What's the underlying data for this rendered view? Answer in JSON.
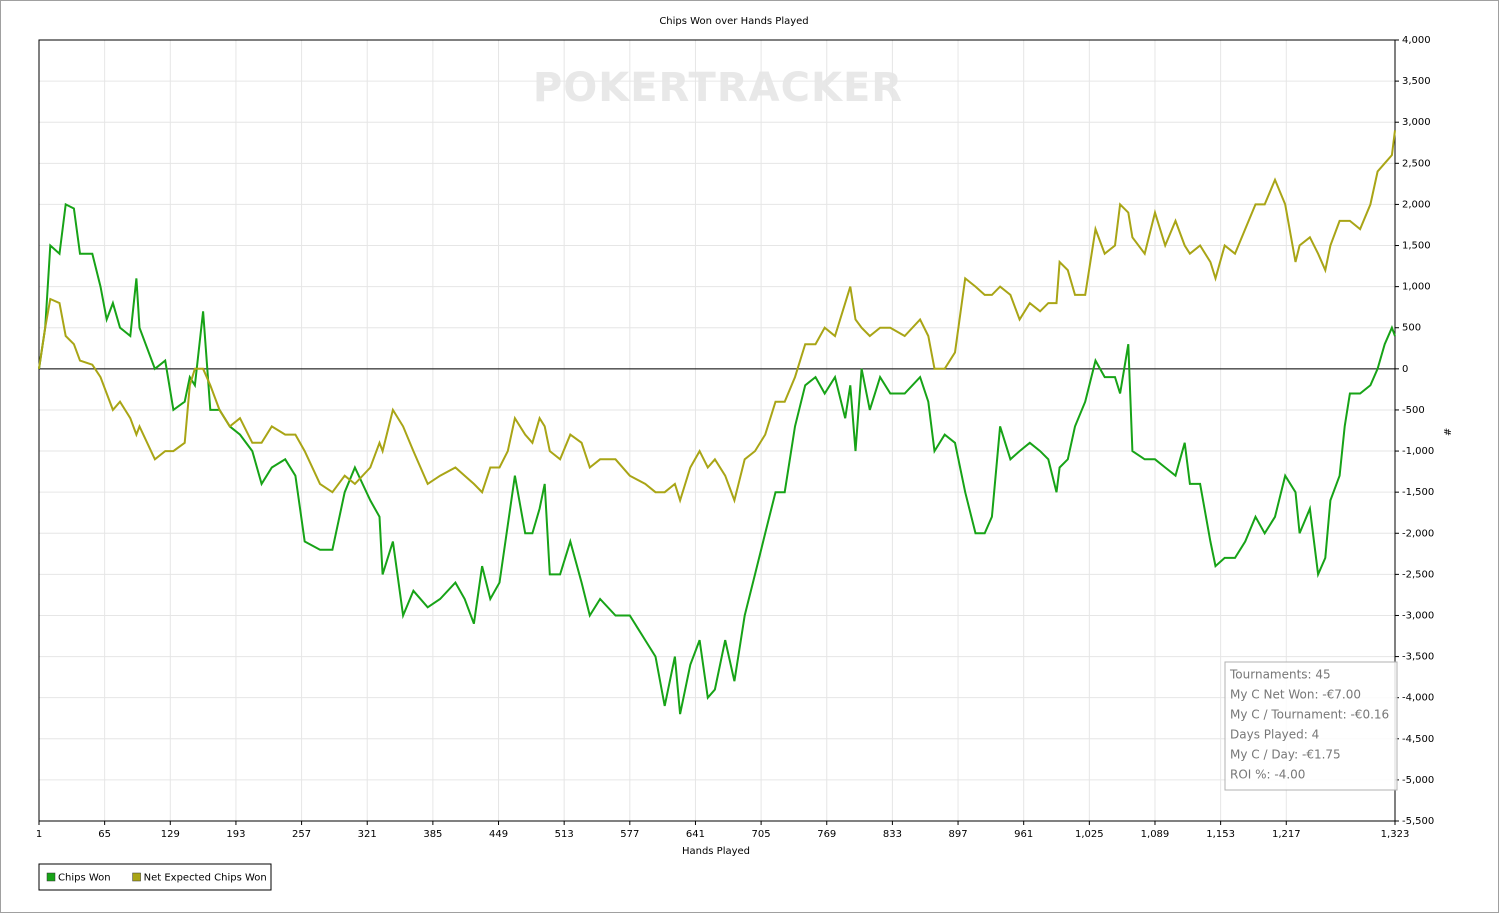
{
  "chart_data": {
    "type": "line",
    "title": "Chips Won over Hands Played",
    "x_label": "Hands Played",
    "y_label": "#",
    "watermark": "POKERTRACKER",
    "x": [
      1,
      7,
      12,
      21,
      27,
      35,
      41,
      53,
      61,
      67,
      73,
      80,
      90,
      96,
      99,
      114,
      124,
      132,
      143,
      148,
      153,
      161,
      168,
      177,
      187,
      197,
      209,
      218,
      228,
      241,
      251,
      260,
      275,
      287,
      299,
      309,
      324,
      333,
      336,
      346,
      356,
      366,
      380,
      392,
      407,
      416,
      425,
      433,
      441,
      450,
      458,
      465,
      475,
      482,
      489,
      494,
      499,
      509,
      519,
      530,
      538,
      548,
      563,
      577,
      592,
      602,
      611,
      621,
      626,
      636,
      645,
      653,
      660,
      670,
      679,
      689,
      699,
      709,
      719,
      728,
      738,
      748,
      758,
      767,
      777,
      787,
      792,
      797,
      803,
      811,
      821,
      831,
      845,
      860,
      868,
      874,
      884,
      894,
      904,
      914,
      923,
      930,
      938,
      948,
      957,
      967,
      977,
      985,
      993,
      996,
      1004,
      1011,
      1021,
      1031,
      1040,
      1050,
      1055,
      1063,
      1067,
      1079,
      1089,
      1099,
      1109,
      1118,
      1123,
      1133,
      1143,
      1148,
      1157,
      1167,
      1177,
      1187,
      1196,
      1206,
      1216,
      1226,
      1230,
      1240,
      1248,
      1255,
      1260,
      1269,
      1274,
      1279,
      1289,
      1299,
      1306,
      1313,
      1320,
      1323
    ],
    "series": [
      {
        "name": "Chips Won",
        "color": "#17a317",
        "values": [
          0,
          500,
          1500,
          1400,
          2000,
          1950,
          1400,
          1400,
          1000,
          600,
          800,
          500,
          400,
          1100,
          500,
          0,
          100,
          -500,
          -400,
          -100,
          -200,
          700,
          -500,
          -500,
          -700,
          -800,
          -1000,
          -1400,
          -1200,
          -1100,
          -1300,
          -2100,
          -2200,
          -2200,
          -1500,
          -1200,
          -1600,
          -1800,
          -2500,
          -2100,
          -3000,
          -2700,
          -2900,
          -2800,
          -2600,
          -2800,
          -3100,
          -2400,
          -2800,
          -2600,
          -1900,
          -1300,
          -2000,
          -2000,
          -1700,
          -1400,
          -2500,
          -2500,
          -2100,
          -2600,
          -3000,
          -2800,
          -3000,
          -3000,
          -3300,
          -3500,
          -4100,
          -3500,
          -4200,
          -3600,
          -3300,
          -4000,
          -3900,
          -3300,
          -3800,
          -3000,
          -2500,
          -2000,
          -1500,
          -1500,
          -700,
          -200,
          -100,
          -300,
          -100,
          -600,
          -200,
          -1000,
          0,
          -500,
          -100,
          -300,
          -300,
          -100,
          -400,
          -1000,
          -800,
          -900,
          -1500,
          -2000,
          -2000,
          -1800,
          -700,
          -1100,
          -1000,
          -900,
          -1000,
          -1100,
          -1500,
          -1200,
          -1100,
          -700,
          -400,
          100,
          -100,
          -100,
          -300,
          300,
          -1000,
          -1100,
          -1100,
          -1200,
          -1300,
          -900,
          -1400,
          -1400,
          -2100,
          -2400,
          -2300,
          -2300,
          -2100,
          -1800,
          -2000,
          -1800,
          -1300,
          -1500,
          -2000,
          -1700,
          -2500,
          -2300,
          -1600,
          -1300,
          -700,
          -300,
          -300,
          -200,
          0,
          300,
          500,
          400
        ]
      },
      {
        "name": "Net Expected Chips Won",
        "color": "#a9a516",
        "values": [
          0,
          500,
          850,
          800,
          400,
          300,
          100,
          50,
          -100,
          -300,
          -500,
          -400,
          -600,
          -800,
          -700,
          -1100,
          -1000,
          -1000,
          -900,
          -200,
          0,
          0,
          -200,
          -500,
          -700,
          -600,
          -900,
          -900,
          -700,
          -800,
          -800,
          -1000,
          -1400,
          -1500,
          -1300,
          -1400,
          -1200,
          -900,
          -1000,
          -500,
          -700,
          -1000,
          -1400,
          -1300,
          -1200,
          -1300,
          -1400,
          -1500,
          -1200,
          -1200,
          -1000,
          -600,
          -800,
          -900,
          -600,
          -700,
          -1000,
          -1100,
          -800,
          -900,
          -1200,
          -1100,
          -1100,
          -1300,
          -1400,
          -1500,
          -1500,
          -1400,
          -1600,
          -1200,
          -1000,
          -1200,
          -1100,
          -1300,
          -1600,
          -1100,
          -1000,
          -800,
          -400,
          -400,
          -100,
          300,
          300,
          500,
          400,
          800,
          1000,
          600,
          500,
          400,
          500,
          500,
          400,
          600,
          400,
          0,
          0,
          200,
          1100,
          1000,
          900,
          900,
          1000,
          900,
          600,
          800,
          700,
          800,
          800,
          1300,
          1200,
          900,
          900,
          1700,
          1400,
          1500,
          2000,
          1900,
          1600,
          1400,
          1900,
          1500,
          1800,
          1500,
          1400,
          1500,
          1300,
          1100,
          1500,
          1400,
          1700,
          2000,
          2000,
          2300,
          2000,
          1300,
          1500,
          1600,
          1400,
          1200,
          1500,
          1800,
          1800,
          1800,
          1700,
          2000,
          2400,
          2500,
          2600,
          2900
        ]
      }
    ],
    "xlim": [
      1,
      1323
    ],
    "xticks": [
      1,
      65,
      129,
      193,
      257,
      321,
      385,
      449,
      513,
      577,
      641,
      705,
      769,
      833,
      897,
      961,
      {
        "value": 1025,
        "label": "1,025"
      },
      {
        "value": 1089,
        "label": "1,089"
      },
      {
        "value": 1153,
        "label": "1,153"
      },
      {
        "value": 1217,
        "label": "1,217"
      },
      {
        "value": 1323,
        "label": "1,323"
      }
    ],
    "ylim": [
      -5500,
      4000
    ],
    "yticks": [
      {
        "value": 4000,
        "label": "4,000"
      },
      {
        "value": 3500,
        "label": "3,500"
      },
      {
        "value": 3000,
        "label": "3,000"
      },
      {
        "value": 2500,
        "label": "2,500"
      },
      {
        "value": 2000,
        "label": "2,000"
      },
      {
        "value": 1500,
        "label": "1,500"
      },
      {
        "value": 1000,
        "label": "1,000"
      },
      500,
      0,
      -500,
      {
        "value": -1000,
        "label": "-1,000"
      },
      {
        "value": -1500,
        "label": "-1,500"
      },
      {
        "value": -2000,
        "label": "-2,000"
      },
      {
        "value": -2500,
        "label": "-2,500"
      },
      {
        "value": -3000,
        "label": "-3,000"
      },
      {
        "value": -3500,
        "label": "-3,500"
      },
      {
        "value": -4000,
        "label": "-4,000"
      },
      {
        "value": -4500,
        "label": "-4,500"
      },
      {
        "value": -5000,
        "label": "-5,000"
      },
      {
        "value": -5500,
        "label": "-5,500"
      }
    ],
    "grid": true,
    "legend": "bottom-left",
    "stats": [
      "Tournaments: 45",
      "My C Net Won: -€7.00",
      "My C / Tournament: -€0.16",
      "Days Played: 4",
      "My C / Day: -€1.75",
      "ROI %: -4.00"
    ]
  }
}
